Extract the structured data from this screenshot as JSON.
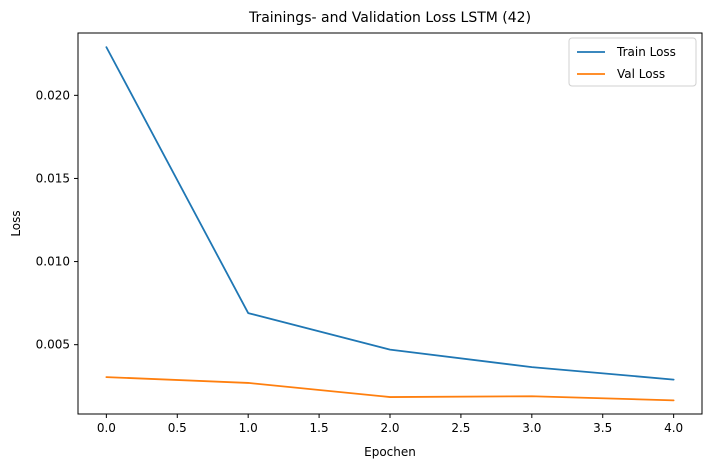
{
  "chart_data": {
    "type": "line",
    "title": "Trainings- and Validation Loss LSTM (42)",
    "xlabel": "Epochen",
    "ylabel": "Loss",
    "xlim": [
      -0.2,
      4.2
    ],
    "ylim": [
      0.00083,
      0.02375
    ],
    "xticks": [
      0.0,
      0.5,
      1.0,
      1.5,
      2.0,
      2.5,
      3.0,
      3.5,
      4.0
    ],
    "xtick_labels": [
      "0.0",
      "0.5",
      "1.0",
      "1.5",
      "2.0",
      "2.5",
      "3.0",
      "3.5",
      "4.0"
    ],
    "yticks": [
      0.005,
      0.01,
      0.015,
      0.02
    ],
    "ytick_labels": [
      "0.005",
      "0.010",
      "0.015",
      "0.020"
    ],
    "grid": false,
    "legend_position": "top-right",
    "series": [
      {
        "name": "Train Loss",
        "color": "#1f77b4",
        "x": [
          0,
          1,
          2,
          3,
          4
        ],
        "y": [
          0.0229,
          0.0069,
          0.0047,
          0.00365,
          0.0029
        ]
      },
      {
        "name": "Val Loss",
        "color": "#ff7f0e",
        "x": [
          0,
          1,
          2,
          3,
          4
        ],
        "y": [
          0.00305,
          0.0027,
          0.00185,
          0.0019,
          0.00165
        ]
      }
    ]
  }
}
